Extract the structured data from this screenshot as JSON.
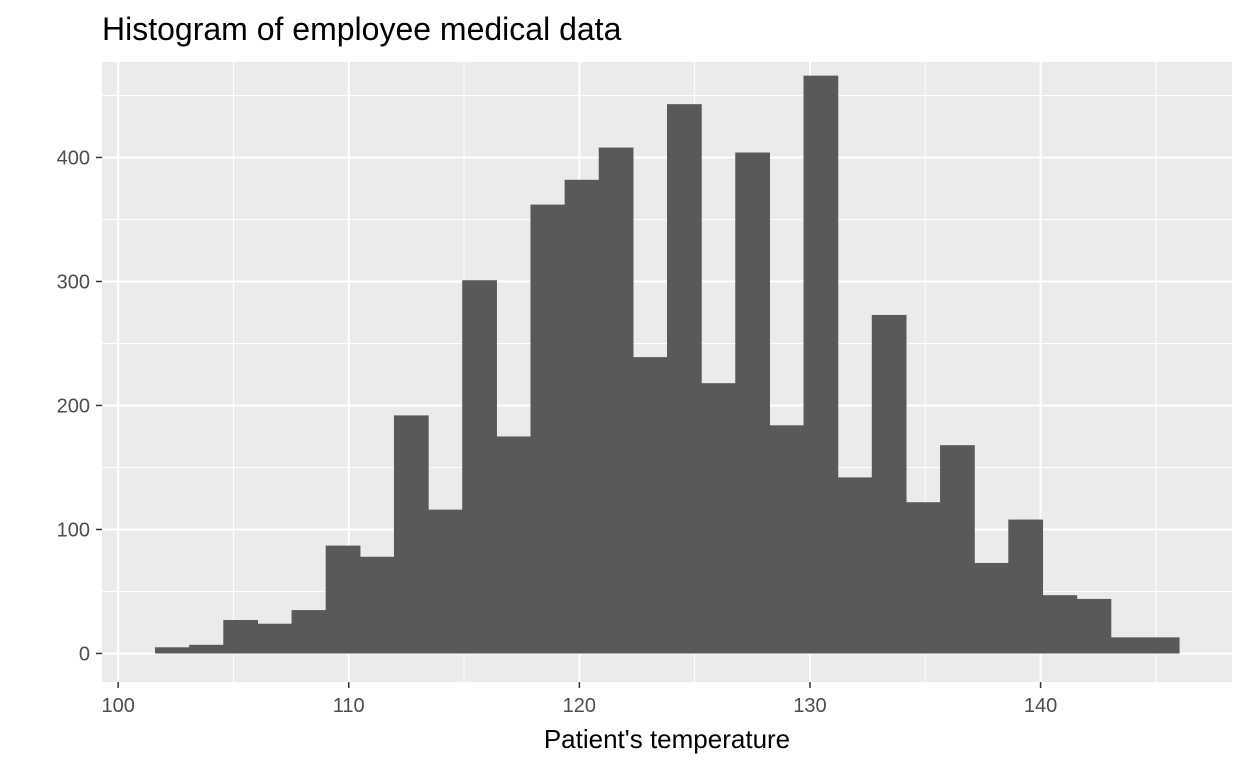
{
  "chart_data": {
    "type": "bar",
    "title": "Histogram of employee medical data",
    "xlabel": "Patient's temperature",
    "ylabel": "",
    "xlim": [
      99.3,
      148.3
    ],
    "ylim": [
      -23,
      477
    ],
    "xticks": [
      100,
      110,
      120,
      130,
      140
    ],
    "yticks": [
      0,
      100,
      200,
      300,
      400
    ],
    "bin_width": 1.48,
    "bin_start": 101.6,
    "counts": [
      5,
      7,
      27,
      24,
      35,
      87,
      78,
      192,
      116,
      301,
      175,
      362,
      382,
      408,
      239,
      443,
      218,
      404,
      184,
      466,
      142,
      273,
      122,
      168,
      73,
      108,
      47,
      44,
      13,
      13
    ],
    "bar_color": "#595959",
    "panel_color": "#ebebeb",
    "grid": true,
    "legend": "none"
  }
}
